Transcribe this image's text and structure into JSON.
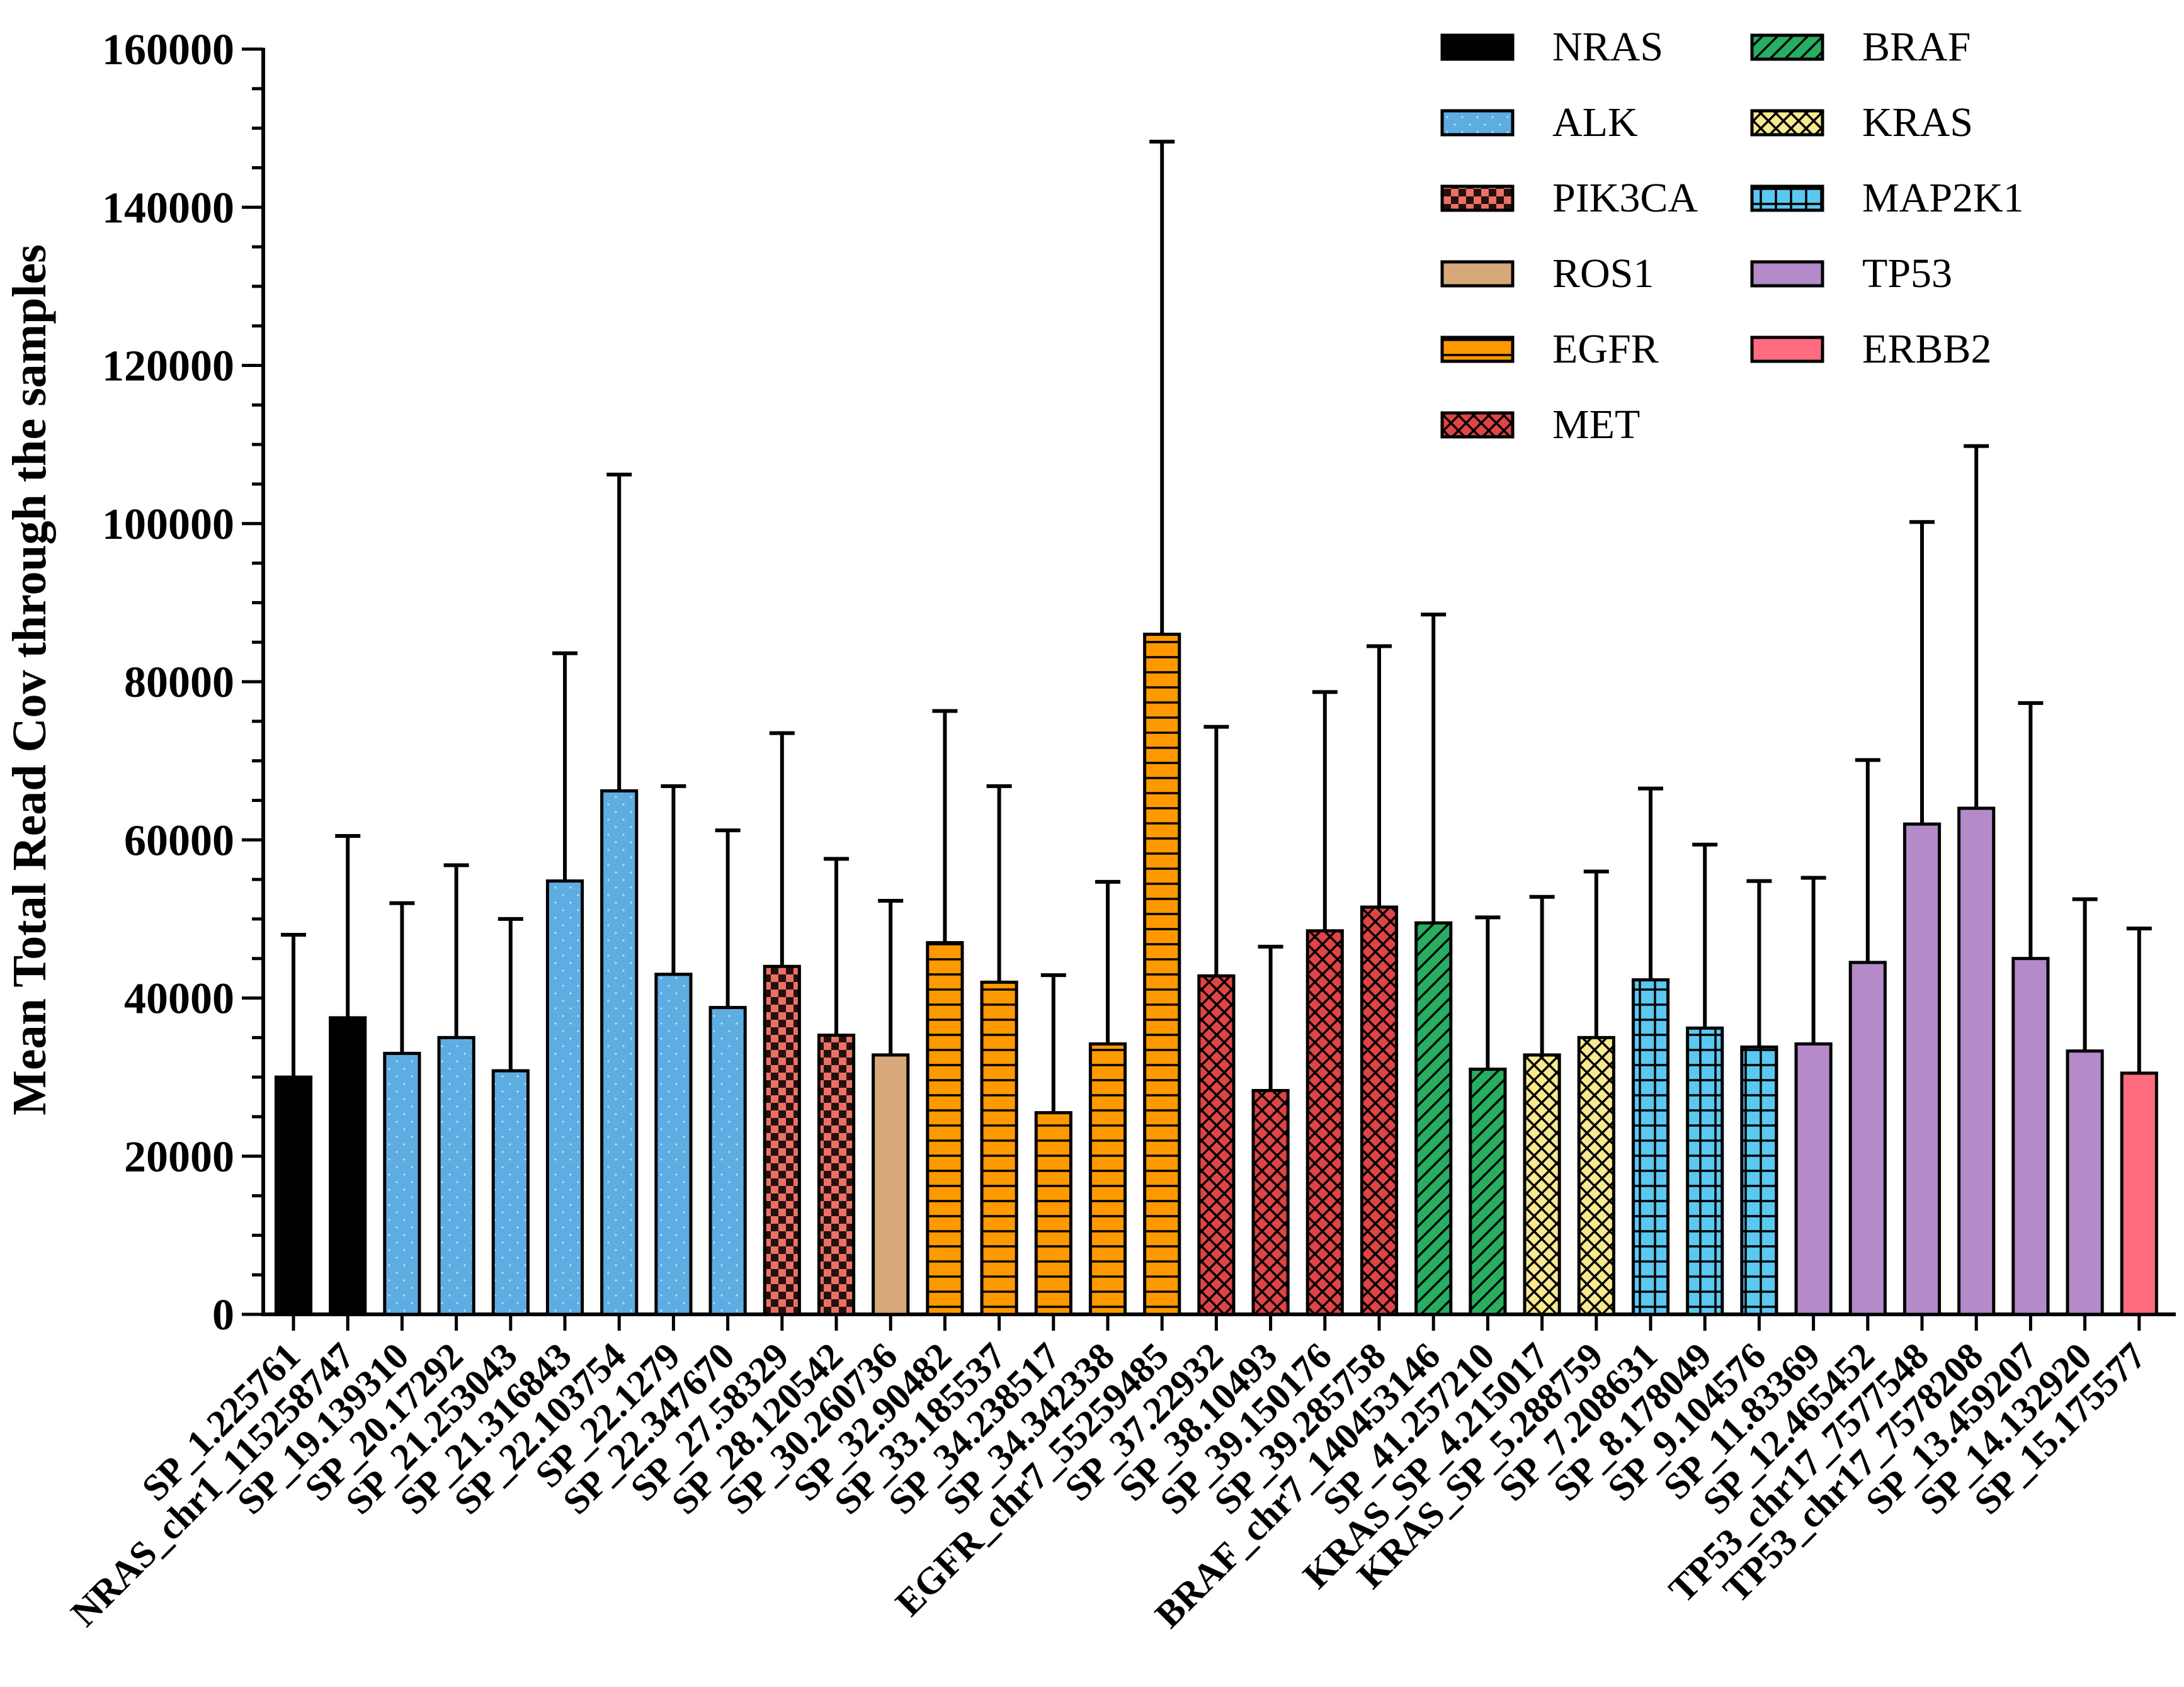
{
  "chart_data": {
    "type": "bar",
    "title": "",
    "xlabel": "",
    "ylabel": "Mean Total Read Cov through the samples",
    "ylim": [
      0,
      160000
    ],
    "yticks": [
      0,
      20000,
      40000,
      60000,
      80000,
      100000,
      120000,
      140000,
      160000
    ],
    "error_bars": true,
    "legend_position": "top-right",
    "genes": [
      {
        "name": "NRAS",
        "color": "#000000",
        "pattern": "solid"
      },
      {
        "name": "ALK",
        "color": "#5dade2",
        "pattern": "dots"
      },
      {
        "name": "PIK3CA",
        "color": "#ec7063",
        "pattern": "checker"
      },
      {
        "name": "ROS1",
        "color": "#d7a87a",
        "pattern": "solid"
      },
      {
        "name": "EGFR",
        "color": "#ff9900",
        "pattern": "hlines"
      },
      {
        "name": "MET",
        "color": "#e04444",
        "pattern": "diagcross"
      },
      {
        "name": "BRAF",
        "color": "#27ae60",
        "pattern": "diag"
      },
      {
        "name": "KRAS",
        "color": "#f7e98e",
        "pattern": "xcross"
      },
      {
        "name": "MAP2K1",
        "color": "#5bc8f0",
        "pattern": "grid"
      },
      {
        "name": "TP53",
        "color": "#b48ac8",
        "pattern": "solid"
      },
      {
        "name": "ERBB2",
        "color": "#ff6b7f",
        "pattern": "solid"
      }
    ],
    "bars": [
      {
        "label": "SP_1.225761",
        "gene": "NRAS",
        "value": 30000,
        "err": 18000
      },
      {
        "label": "NRAS_chr1_115258747",
        "gene": "NRAS",
        "value": 37500,
        "err": 23000
      },
      {
        "label": "SP_19.139310",
        "gene": "ALK",
        "value": 33000,
        "err": 19000
      },
      {
        "label": "SP_20.17292",
        "gene": "ALK",
        "value": 35000,
        "err": 21800
      },
      {
        "label": "SP_21.253043",
        "gene": "ALK",
        "value": 30800,
        "err": 19200
      },
      {
        "label": "SP_21.316843",
        "gene": "ALK",
        "value": 54800,
        "err": 28800
      },
      {
        "label": "SP_22.103754",
        "gene": "ALK",
        "value": 66200,
        "err": 40000
      },
      {
        "label": "SP_22.1279",
        "gene": "ALK",
        "value": 43000,
        "err": 23800
      },
      {
        "label": "SP_22.347670",
        "gene": "ALK",
        "value": 38800,
        "err": 22400
      },
      {
        "label": "SP_27.58329",
        "gene": "PIK3CA",
        "value": 44000,
        "err": 29500
      },
      {
        "label": "SP_28.120542",
        "gene": "PIK3CA",
        "value": 35300,
        "err": 22300
      },
      {
        "label": "SP_30.260736",
        "gene": "ROS1",
        "value": 32800,
        "err": 19500
      },
      {
        "label": "SP_32.90482",
        "gene": "EGFR",
        "value": 47000,
        "err": 29300
      },
      {
        "label": "SP_33.185537",
        "gene": "EGFR",
        "value": 42000,
        "err": 24800
      },
      {
        "label": "SP_34.238517",
        "gene": "EGFR",
        "value": 25500,
        "err": 17400
      },
      {
        "label": "SP_34.342338",
        "gene": "EGFR",
        "value": 34200,
        "err": 20500
      },
      {
        "label": "EGFR_chr7_55259485",
        "gene": "EGFR",
        "value": 86000,
        "err": 62300
      },
      {
        "label": "SP_37.22932",
        "gene": "MET",
        "value": 42800,
        "err": 31500
      },
      {
        "label": "SP_38.10493",
        "gene": "MET",
        "value": 28300,
        "err": 18200
      },
      {
        "label": "SP_39.150176",
        "gene": "MET",
        "value": 48500,
        "err": 30200
      },
      {
        "label": "SP_39.285758",
        "gene": "MET",
        "value": 51500,
        "err": 33000
      },
      {
        "label": "BRAF_chr7_140453146",
        "gene": "BRAF",
        "value": 49500,
        "err": 39000
      },
      {
        "label": "SP_41.257210",
        "gene": "BRAF",
        "value": 31000,
        "err": 19200
      },
      {
        "label": "KRAS_SP_4.215017",
        "gene": "KRAS",
        "value": 32800,
        "err": 20000
      },
      {
        "label": "KRAS_SP_5.288759",
        "gene": "KRAS",
        "value": 35000,
        "err": 21000
      },
      {
        "label": "SP_7.208631",
        "gene": "MAP2K1",
        "value": 42300,
        "err": 24200
      },
      {
        "label": "SP_8.178049",
        "gene": "MAP2K1",
        "value": 36200,
        "err": 23200
      },
      {
        "label": "SP_9.104576",
        "gene": "MAP2K1",
        "value": 33800,
        "err": 21000
      },
      {
        "label": "SP_11.83369",
        "gene": "TP53",
        "value": 34200,
        "err": 21000
      },
      {
        "label": "SP_12.465452",
        "gene": "TP53",
        "value": 44500,
        "err": 25600
      },
      {
        "label": "TP53_chr17_7577548",
        "gene": "TP53",
        "value": 62000,
        "err": 38200
      },
      {
        "label": "TP53_chr17_7578208",
        "gene": "TP53",
        "value": 64000,
        "err": 45800
      },
      {
        "label": "SP_13.459207",
        "gene": "TP53",
        "value": 45000,
        "err": 32300
      },
      {
        "label": "SP_14.132920",
        "gene": "TP53",
        "value": 33300,
        "err": 19200
      },
      {
        "label": "SP_15.175577",
        "gene": "ERBB2",
        "value": 30500,
        "err": 18300
      }
    ]
  }
}
